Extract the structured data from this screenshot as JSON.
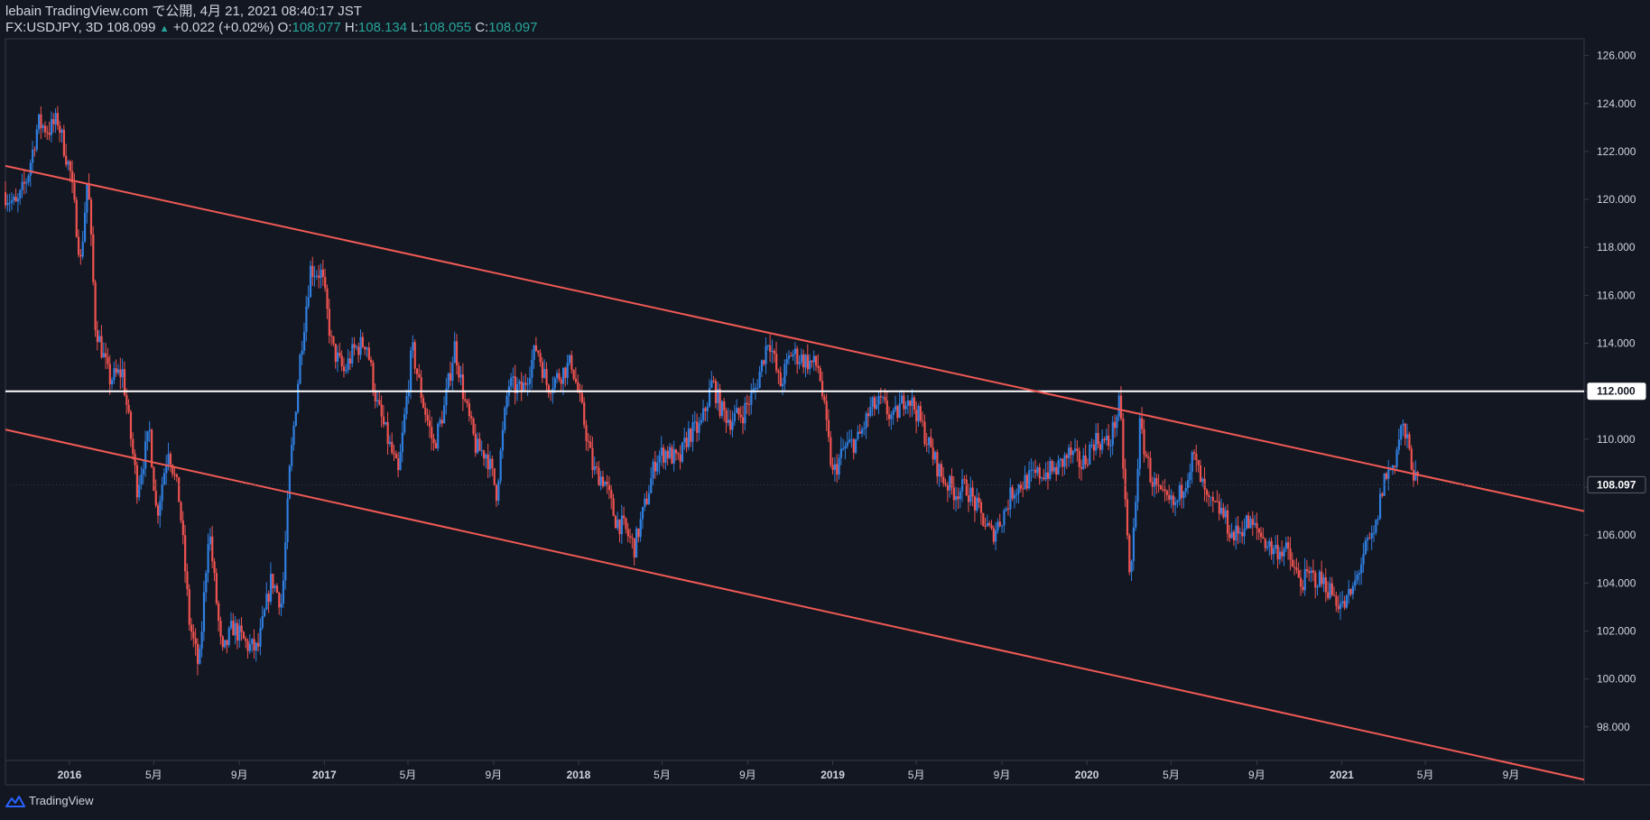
{
  "header": {
    "line1": "lebain TradingView.com で公開, 4月 21, 2021 08:40:17 JST",
    "symbol": "FX:USDJPY, 3D 108.099",
    "change_arrow": "▲",
    "change": "+0.022 (+0.02%)",
    "o_label": "O:",
    "o_value": "108.077",
    "h_label": "H:",
    "h_value": "108.134",
    "l_label": "L:",
    "l_value": "108.055",
    "c_label": "C:",
    "c_value": "108.097"
  },
  "footer": {
    "brand": "TradingView",
    "logo_icon": "tradingview-logo-icon"
  },
  "colors": {
    "background": "#131722",
    "up": "#2f7fe0",
    "down": "#ef5350",
    "trendline": "#f05a55",
    "hline": "#ffffff",
    "axis_text": "#d1d4dc",
    "axis_line": "#363a45",
    "last_price_bg": "#131722"
  },
  "chart_data": {
    "type": "candlestick",
    "symbol": "FX:USDJPY",
    "timeframe": "3D",
    "x_range": [
      "2015-10-01",
      "2021-12-15"
    ],
    "ylim": [
      96.6,
      126.7
    ],
    "y_ticks": [
      98,
      100,
      102,
      104,
      106,
      108,
      110,
      112,
      114,
      116,
      118,
      120,
      122,
      124,
      126
    ],
    "y_tick_labels": [
      "98.000",
      "100.000",
      "102.000",
      "104.000",
      "106.000",
      "108.000",
      "110.000",
      "112.000",
      "114.000",
      "116.000",
      "118.000",
      "120.000",
      "122.000",
      "124.000",
      "126.000"
    ],
    "x_ticks": [
      {
        "date": "2016-01-01",
        "label": "2016"
      },
      {
        "date": "2016-05-01",
        "label": "5月"
      },
      {
        "date": "2016-09-01",
        "label": "9月"
      },
      {
        "date": "2017-01-01",
        "label": "2017"
      },
      {
        "date": "2017-05-01",
        "label": "5月"
      },
      {
        "date": "2017-09-01",
        "label": "9月"
      },
      {
        "date": "2018-01-01",
        "label": "2018"
      },
      {
        "date": "2018-05-01",
        "label": "5月"
      },
      {
        "date": "2018-09-01",
        "label": "9月"
      },
      {
        "date": "2019-01-01",
        "label": "2019"
      },
      {
        "date": "2019-05-01",
        "label": "5月"
      },
      {
        "date": "2019-09-01",
        "label": "9月"
      },
      {
        "date": "2020-01-01",
        "label": "2020"
      },
      {
        "date": "2020-05-01",
        "label": "5月"
      },
      {
        "date": "2020-09-01",
        "label": "9月"
      },
      {
        "date": "2021-01-01",
        "label": "2021"
      },
      {
        "date": "2021-05-01",
        "label": "5月"
      },
      {
        "date": "2021-09-01",
        "label": "9月"
      }
    ],
    "price_path": [
      [
        "2015-10-01",
        120.3
      ],
      [
        "2015-10-20",
        119.7
      ],
      [
        "2015-11-05",
        121.0
      ],
      [
        "2015-11-20",
        123.2
      ],
      [
        "2015-12-05",
        122.9
      ],
      [
        "2015-12-18",
        123.3
      ],
      [
        "2016-01-05",
        121.1
      ],
      [
        "2016-01-20",
        117.4
      ],
      [
        "2016-01-30",
        121.0
      ],
      [
        "2016-02-10",
        114.8
      ],
      [
        "2016-03-01",
        112.5
      ],
      [
        "2016-03-20",
        112.8
      ],
      [
        "2016-04-10",
        108.0
      ],
      [
        "2016-04-28",
        110.3
      ],
      [
        "2016-05-08",
        106.8
      ],
      [
        "2016-05-25",
        109.7
      ],
      [
        "2016-06-10",
        107.4
      ],
      [
        "2016-06-24",
        102.4
      ],
      [
        "2016-07-08",
        100.4
      ],
      [
        "2016-07-22",
        106.4
      ],
      [
        "2016-08-10",
        100.9
      ],
      [
        "2016-08-25",
        102.2
      ],
      [
        "2016-09-15",
        101.4
      ],
      [
        "2016-09-30",
        101.2
      ],
      [
        "2016-10-20",
        104.2
      ],
      [
        "2016-11-04",
        103.1
      ],
      [
        "2016-11-15",
        108.6
      ],
      [
        "2016-11-30",
        113.4
      ],
      [
        "2016-12-15",
        117.1
      ],
      [
        "2016-12-31",
        116.9
      ],
      [
        "2017-01-15",
        113.8
      ],
      [
        "2017-02-01",
        112.8
      ],
      [
        "2017-02-15",
        113.7
      ],
      [
        "2017-03-05",
        114.1
      ],
      [
        "2017-03-20",
        111.5
      ],
      [
        "2017-04-10",
        109.5
      ],
      [
        "2017-04-20",
        108.5
      ],
      [
        "2017-05-10",
        113.8
      ],
      [
        "2017-05-25",
        111.6
      ],
      [
        "2017-06-10",
        109.7
      ],
      [
        "2017-06-25",
        111.3
      ],
      [
        "2017-07-10",
        113.9
      ],
      [
        "2017-07-25",
        111.5
      ],
      [
        "2017-08-10",
        109.6
      ],
      [
        "2017-08-25",
        109.4
      ],
      [
        "2017-09-08",
        107.8
      ],
      [
        "2017-09-25",
        112.3
      ],
      [
        "2017-10-15",
        112.0
      ],
      [
        "2017-11-05",
        113.9
      ],
      [
        "2017-11-20",
        112.2
      ],
      [
        "2017-12-05",
        112.6
      ],
      [
        "2017-12-25",
        113.2
      ],
      [
        "2018-01-10",
        111.0
      ],
      [
        "2018-01-25",
        108.7
      ],
      [
        "2018-02-10",
        108.3
      ],
      [
        "2018-02-25",
        106.7
      ],
      [
        "2018-03-10",
        106.3
      ],
      [
        "2018-03-25",
        105.5
      ],
      [
        "2018-04-10",
        107.3
      ],
      [
        "2018-04-25",
        109.2
      ],
      [
        "2018-05-10",
        109.5
      ],
      [
        "2018-05-28",
        109.0
      ],
      [
        "2018-06-10",
        110.2
      ],
      [
        "2018-06-28",
        110.5
      ],
      [
        "2018-07-15",
        112.4
      ],
      [
        "2018-07-28",
        111.2
      ],
      [
        "2018-08-10",
        110.8
      ],
      [
        "2018-08-28",
        111.1
      ],
      [
        "2018-09-15",
        112.1
      ],
      [
        "2018-10-04",
        114.3
      ],
      [
        "2018-10-20",
        112.2
      ],
      [
        "2018-11-05",
        113.6
      ],
      [
        "2018-11-25",
        113.3
      ],
      [
        "2018-12-15",
        113.0
      ],
      [
        "2018-12-28",
        110.0
      ],
      [
        "2019-01-04",
        108.5
      ],
      [
        "2019-01-20",
        109.6
      ],
      [
        "2019-02-10",
        110.0
      ],
      [
        "2019-02-28",
        111.3
      ],
      [
        "2019-03-15",
        111.5
      ],
      [
        "2019-04-01",
        110.8
      ],
      [
        "2019-04-20",
        111.9
      ],
      [
        "2019-05-05",
        111.1
      ],
      [
        "2019-05-25",
        109.5
      ],
      [
        "2019-06-10",
        108.4
      ],
      [
        "2019-06-28",
        107.8
      ],
      [
        "2019-07-15",
        108.0
      ],
      [
        "2019-08-01",
        107.0
      ],
      [
        "2019-08-20",
        106.0
      ],
      [
        "2019-09-05",
        106.8
      ],
      [
        "2019-09-20",
        107.9
      ],
      [
        "2019-10-10",
        108.3
      ],
      [
        "2019-11-01",
        108.6
      ],
      [
        "2019-11-20",
        108.7
      ],
      [
        "2019-12-10",
        109.4
      ],
      [
        "2019-12-28",
        108.9
      ],
      [
        "2020-01-15",
        110.0
      ],
      [
        "2020-02-05",
        109.8
      ],
      [
        "2020-02-20",
        111.5
      ],
      [
        "2020-03-06",
        103.8
      ],
      [
        "2020-03-20",
        110.5
      ],
      [
        "2020-04-05",
        108.4
      ],
      [
        "2020-04-20",
        107.5
      ],
      [
        "2020-05-10",
        107.2
      ],
      [
        "2020-06-05",
        109.3
      ],
      [
        "2020-06-25",
        107.3
      ],
      [
        "2020-07-15",
        107.0
      ],
      [
        "2020-08-01",
        105.9
      ],
      [
        "2020-08-20",
        106.5
      ],
      [
        "2020-09-05",
        106.2
      ],
      [
        "2020-09-25",
        105.4
      ],
      [
        "2020-10-15",
        105.4
      ],
      [
        "2020-11-05",
        104.0
      ],
      [
        "2020-11-20",
        104.3
      ],
      [
        "2020-12-10",
        104.0
      ],
      [
        "2020-12-28",
        103.3
      ],
      [
        "2021-01-06",
        103.0
      ],
      [
        "2021-01-20",
        103.7
      ],
      [
        "2021-02-05",
        105.3
      ],
      [
        "2021-02-20",
        106.0
      ],
      [
        "2021-03-05",
        108.3
      ],
      [
        "2021-03-20",
        109.0
      ],
      [
        "2021-03-31",
        110.6
      ],
      [
        "2021-04-10",
        109.6
      ],
      [
        "2021-04-21",
        108.1
      ]
    ],
    "trendlines": [
      {
        "name": "upper-channel",
        "points": [
          [
            "2015-10-01",
            121.4
          ],
          [
            "2021-12-15",
            107.0
          ]
        ]
      },
      {
        "name": "lower-channel",
        "points": [
          [
            "2015-10-01",
            110.4
          ],
          [
            "2021-12-15",
            95.8
          ]
        ]
      }
    ],
    "horizontal_lines": [
      {
        "name": "level-112",
        "price": 112.0
      }
    ],
    "last_price": {
      "value": 108.097,
      "label": "108.097"
    },
    "level_label": "112.000"
  }
}
